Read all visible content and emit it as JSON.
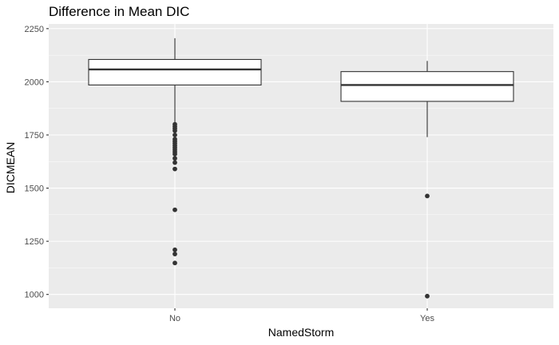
{
  "chart_data": {
    "type": "box",
    "title": "Difference in Mean DIC",
    "xlabel": "NamedStorm",
    "ylabel": "DICMEAN",
    "categories": [
      "No",
      "Yes"
    ],
    "ylim": [
      935,
      2272
    ],
    "yticks": [
      1000,
      1250,
      1500,
      1750,
      2000,
      2250
    ],
    "ytick_labels": [
      "1000",
      "1250",
      "1500",
      "1750",
      "2000",
      "2250"
    ],
    "grid": true,
    "boxes": [
      {
        "category": "No",
        "whisker_low": 1810,
        "q1": 1985,
        "median": 2058,
        "q3": 2105,
        "whisker_high": 2205,
        "outliers": [
          1800,
          1790,
          1780,
          1770,
          1750,
          1730,
          1720,
          1710,
          1700,
          1690,
          1680,
          1670,
          1660,
          1640,
          1620,
          1590,
          1398,
          1210,
          1190,
          1148
        ]
      },
      {
        "category": "Yes",
        "whisker_low": 1740,
        "q1": 1908,
        "median": 1985,
        "q3": 2048,
        "whisker_high": 2098,
        "outliers": [
          1463,
          992
        ]
      }
    ],
    "colors": {
      "panel": "#ebebeb",
      "grid_major": "#ffffff",
      "box_fill": "#ffffff",
      "box_line": "#333333",
      "outlier": "#333333"
    }
  }
}
